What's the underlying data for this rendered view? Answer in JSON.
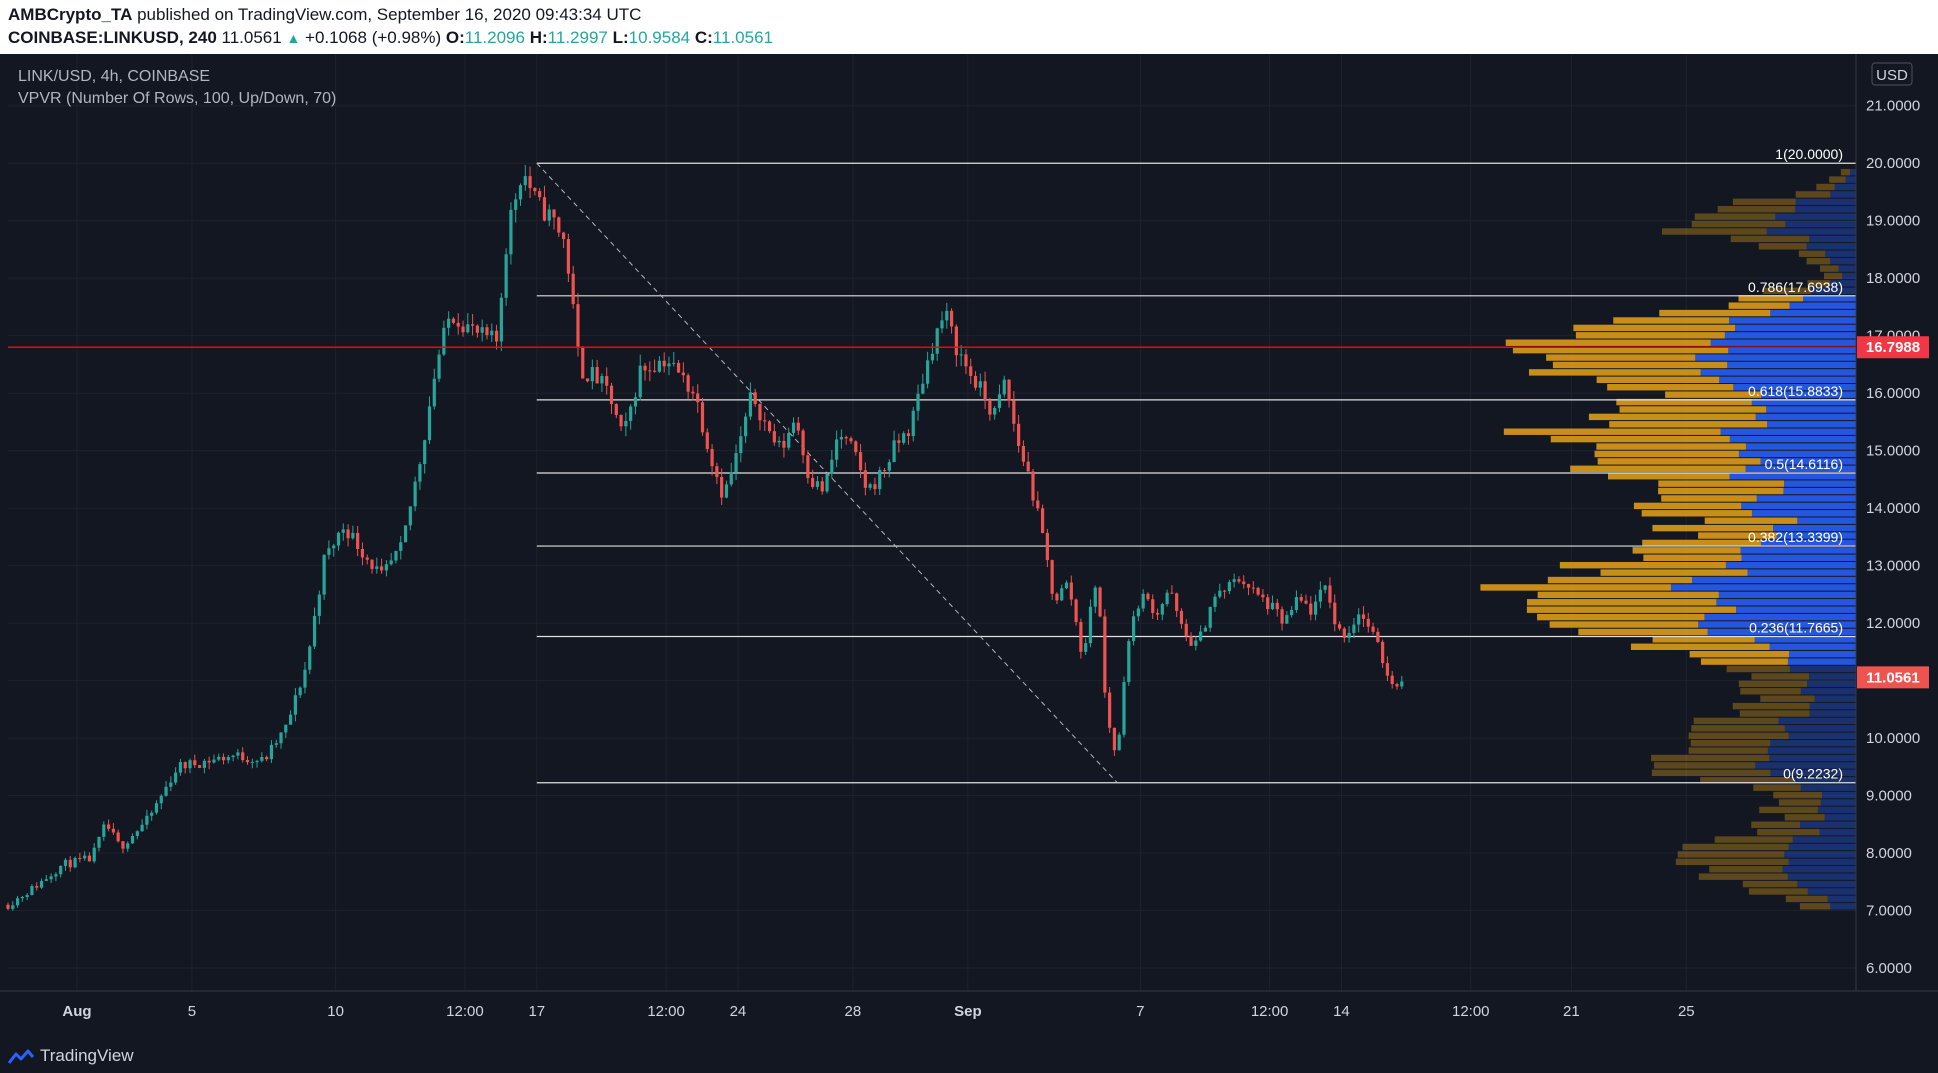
{
  "header": {
    "author": "AMBCrypto_TA",
    "published_text": " published on TradingView.com, September 16, 2020 09:43:34 UTC",
    "symbol": "COINBASE:LINKUSD,",
    "interval": "240",
    "last": "11.0561",
    "change": "+0.1068 (+0.98%)",
    "o_label": "O:",
    "o": "11.2096",
    "h_label": "H:",
    "h": "11.2997",
    "l_label": "L:",
    "l": "10.9584",
    "c_label": "C:",
    "c": "11.0561"
  },
  "footer": {
    "brand": "TradingView"
  },
  "colors": {
    "up": "#26a69a",
    "down": "#ef5350",
    "background": "#131722",
    "vp_up": "#2962ff",
    "vp_down": "#e8a317",
    "price_line": "#ff0000"
  },
  "chart_data": {
    "type": "candlestick",
    "legend": [
      "LINK/USD, 4h, COINBASE",
      "VPVR (Number Of Rows, 100, Up/Down, 70)"
    ],
    "currency": "USD",
    "ylim": [
      5.6,
      21.9
    ],
    "y_ticks": [
      "6.0000",
      "7.0000",
      "8.0000",
      "9.0000",
      "10.0000",
      "11.0000",
      "12.0000",
      "13.0000",
      "14.0000",
      "15.0000",
      "16.0000",
      "17.0000",
      "18.0000",
      "19.0000",
      "20.0000",
      "21.0000"
    ],
    "x_ticks": [
      {
        "label": "Aug",
        "day": 7.0
      },
      {
        "label": "5",
        "day": 11.0
      },
      {
        "label": "10",
        "day": 16.0
      },
      {
        "label": "12:00",
        "day": 20.5
      },
      {
        "label": "17",
        "day": 23.0
      },
      {
        "label": "12:00",
        "day": 27.5
      },
      {
        "label": "24",
        "day": 30.0
      },
      {
        "label": "28",
        "day": 34.0
      },
      {
        "label": "Sep",
        "day": 38.0
      },
      {
        "label": "7",
        "day": 44.0
      },
      {
        "label": "12:00",
        "day": 48.5
      },
      {
        "label": "14",
        "day": 51.0
      },
      {
        "label": "12:00",
        "day": 55.5
      },
      {
        "label": "21",
        "day": 59.0
      },
      {
        "label": "25",
        "day": 63.0
      }
    ],
    "x_range_days": [
      4.6,
      68.0
    ],
    "path": [
      [
        4.6,
        7.1
      ],
      [
        5.5,
        7.4
      ],
      [
        6.5,
        7.8
      ],
      [
        7.5,
        7.9
      ],
      [
        8.0,
        8.5
      ],
      [
        8.5,
        8.1
      ],
      [
        9.5,
        8.6
      ],
      [
        10.5,
        9.5
      ],
      [
        11.5,
        9.6
      ],
      [
        12.5,
        9.7
      ],
      [
        13.5,
        9.6
      ],
      [
        14.3,
        10.2
      ],
      [
        15.0,
        11.3
      ],
      [
        15.6,
        13.1
      ],
      [
        16.3,
        13.7
      ],
      [
        17.0,
        13.2
      ],
      [
        17.6,
        12.8
      ],
      [
        18.3,
        13.3
      ],
      [
        19.0,
        15.0
      ],
      [
        19.5,
        16.5
      ],
      [
        20.0,
        17.4
      ],
      [
        20.5,
        17.2
      ],
      [
        21.0,
        17.0
      ],
      [
        21.6,
        16.9
      ],
      [
        22.0,
        18.9
      ],
      [
        22.5,
        19.9
      ],
      [
        23.0,
        19.3
      ],
      [
        23.6,
        19.0
      ],
      [
        24.0,
        18.6
      ],
      [
        24.5,
        16.4
      ],
      [
        25.0,
        16.3
      ],
      [
        25.5,
        16.0
      ],
      [
        26.0,
        15.2
      ],
      [
        26.6,
        16.4
      ],
      [
        27.5,
        16.6
      ],
      [
        28.5,
        16.0
      ],
      [
        29.0,
        15.0
      ],
      [
        29.5,
        14.2
      ],
      [
        30.0,
        15.0
      ],
      [
        30.5,
        16.0
      ],
      [
        31.0,
        15.4
      ],
      [
        31.5,
        15.0
      ],
      [
        32.0,
        15.6
      ],
      [
        32.5,
        14.5
      ],
      [
        33.0,
        14.3
      ],
      [
        33.5,
        15.3
      ],
      [
        34.0,
        15.0
      ],
      [
        34.5,
        14.3
      ],
      [
        35.0,
        14.6
      ],
      [
        35.5,
        15.1
      ],
      [
        36.0,
        15.4
      ],
      [
        36.4,
        16.2
      ],
      [
        36.8,
        16.9
      ],
      [
        37.2,
        17.4
      ],
      [
        37.6,
        16.8
      ],
      [
        38.0,
        16.4
      ],
      [
        38.5,
        16.0
      ],
      [
        38.9,
        15.6
      ],
      [
        39.3,
        16.2
      ],
      [
        39.7,
        15.2
      ],
      [
        40.1,
        14.6
      ],
      [
        40.6,
        13.5
      ],
      [
        41.0,
        12.4
      ],
      [
        41.5,
        12.7
      ],
      [
        42.0,
        11.4
      ],
      [
        42.5,
        12.9
      ],
      [
        42.8,
        10.5
      ],
      [
        43.2,
        9.6
      ],
      [
        43.5,
        11.5
      ],
      [
        44.0,
        12.5
      ],
      [
        44.6,
        12.2
      ],
      [
        45.0,
        12.6
      ],
      [
        45.5,
        11.8
      ],
      [
        46.0,
        11.6
      ],
      [
        46.5,
        12.4
      ],
      [
        47.0,
        12.6
      ],
      [
        47.5,
        12.8
      ],
      [
        48.0,
        12.5
      ],
      [
        48.5,
        12.3
      ],
      [
        49.0,
        12.0
      ],
      [
        49.5,
        12.4
      ],
      [
        50.0,
        12.2
      ],
      [
        50.5,
        12.7
      ],
      [
        50.8,
        11.9
      ],
      [
        51.2,
        11.8
      ],
      [
        51.6,
        12.2
      ],
      [
        52.0,
        11.9
      ],
      [
        52.4,
        11.4
      ],
      [
        52.8,
        10.9
      ],
      [
        53.1,
        11.06
      ]
    ],
    "last_price": "11.0561",
    "marked_price": "16.7988",
    "marked_price_value": 16.7988,
    "fib": {
      "start": {
        "day": 23.0,
        "price": 20.0
      },
      "end": {
        "day": 43.2,
        "price": 9.2232
      },
      "levels": [
        {
          "label": "1(20.0000)",
          "price": 20.0
        },
        {
          "label": "0.786(17.6938)",
          "price": 17.6938
        },
        {
          "label": "0.618(15.8833)",
          "price": 15.8833
        },
        {
          "label": "0.5(14.6116)",
          "price": 14.6116
        },
        {
          "label": "0.382(13.3399)",
          "price": 13.3399
        },
        {
          "label": "0.236(11.7665)",
          "price": 11.7665
        },
        {
          "label": "0(9.2232)",
          "price": 9.2232
        }
      ]
    },
    "vpvr": {
      "rows": 100,
      "price_range": [
        7.0,
        19.9
      ],
      "value_area": [
        11.2,
        17.7
      ],
      "profile": [
        [
          7.0,
          0.1
        ],
        [
          7.5,
          0.34
        ],
        [
          8.0,
          0.42
        ],
        [
          8.5,
          0.2
        ],
        [
          9.0,
          0.18
        ],
        [
          9.5,
          0.55
        ],
        [
          10.0,
          0.4
        ],
        [
          10.5,
          0.3
        ],
        [
          11.0,
          0.22
        ],
        [
          11.5,
          0.45
        ],
        [
          12.0,
          0.62
        ],
        [
          12.4,
          0.85
        ],
        [
          12.8,
          0.78
        ],
        [
          13.2,
          0.55
        ],
        [
          13.6,
          0.4
        ],
        [
          14.0,
          0.48
        ],
        [
          14.4,
          0.55
        ],
        [
          14.8,
          0.6
        ],
        [
          15.2,
          0.8
        ],
        [
          15.6,
          0.58
        ],
        [
          16.0,
          0.55
        ],
        [
          16.4,
          0.72
        ],
        [
          16.8,
          1.0
        ],
        [
          17.2,
          0.6
        ],
        [
          17.6,
          0.28
        ],
        [
          18.0,
          0.06
        ],
        [
          18.4,
          0.12
        ],
        [
          18.8,
          0.38
        ],
        [
          19.2,
          0.32
        ],
        [
          19.6,
          0.08
        ],
        [
          19.9,
          0.02
        ]
      ],
      "up_share": 0.45
    }
  }
}
